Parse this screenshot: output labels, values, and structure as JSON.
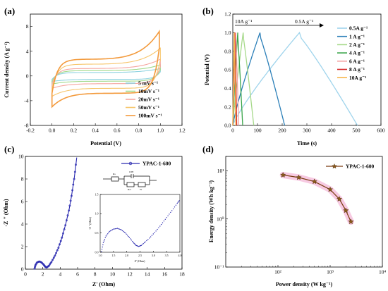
{
  "chart_data": [
    {
      "panel": "(a)",
      "type": "line",
      "title": "",
      "xlabel": "Potential (V)",
      "ylabel": "Current density (A g⁻¹)",
      "xlim": [
        -0.2,
        1.2
      ],
      "ylim": [
        -8,
        10
      ],
      "xticks": [
        "-0.2",
        "0.0",
        "0.2",
        "0.4",
        "0.6",
        "0.8",
        "1.0",
        "1.2"
      ],
      "yticks": [
        "-8",
        "-4",
        "0",
        "4",
        "8"
      ],
      "legend_position": "bottom-right",
      "series": [
        {
          "name": "5 mV s⁻¹",
          "color": "#8fd3e0",
          "vmax": 1.0,
          "ia": 0.55,
          "ic": -0.55,
          "peak": 1.2,
          "neg": -0.9
        },
        {
          "name": "10mV s⁻¹",
          "color": "#a3d98c",
          "vmax": 1.0,
          "ia": 0.85,
          "ic": -0.85,
          "peak": 1.8,
          "neg": -1.3
        },
        {
          "name": "20mV s⁻¹",
          "color": "#f5a6a0",
          "vmax": 1.0,
          "ia": 1.2,
          "ic": -1.25,
          "peak": 2.7,
          "neg": -2.0
        },
        {
          "name": "50mV s⁻¹",
          "color": "#f7c56a",
          "vmax": 1.0,
          "ia": 1.9,
          "ic": -2.0,
          "peak": 4.5,
          "neg": -3.3
        },
        {
          "name": "100mV s⁻¹",
          "color": "#f39a3c",
          "vmax": 0.99,
          "ia": 2.7,
          "ic": -2.8,
          "peak": 7.2,
          "neg": -5.0
        }
      ]
    },
    {
      "panel": "(b)",
      "type": "line",
      "title": "",
      "xlabel": "Time (s)",
      "ylabel": "Potential (V)",
      "xlim": [
        0,
        600
      ],
      "ylim": [
        0,
        1.2
      ],
      "xticks": [
        "0",
        "100",
        "200",
        "300",
        "400",
        "500",
        "600"
      ],
      "yticks": [
        "0.0",
        "0.2",
        "0.4",
        "0.6",
        "0.8",
        "1.0",
        "1.2"
      ],
      "legend_position": "right",
      "annotations": [
        "10A g⁻¹",
        "0.5A g⁻¹"
      ],
      "series": [
        {
          "name": "0.5A g⁻¹",
          "color": "#9fd4ec",
          "t_charge": 270,
          "t_end": 505
        },
        {
          "name": "1  A g⁻¹",
          "color": "#2b7fb8",
          "t_charge": 110,
          "t_end": 210
        },
        {
          "name": "2  A g⁻¹",
          "color": "#a6d98a",
          "t_charge": 42,
          "t_end": 85
        },
        {
          "name": "4  A g⁻¹",
          "color": "#3aa54a",
          "t_charge": 20,
          "t_end": 40
        },
        {
          "name": "6  A g⁻¹",
          "color": "#f4a3a3",
          "t_charge": 12,
          "t_end": 24
        },
        {
          "name": "8  A g⁻¹",
          "color": "#d62728",
          "t_charge": 8,
          "t_end": 16
        },
        {
          "name": "10A g⁻¹",
          "color": "#f7b54a",
          "t_charge": 6,
          "t_end": 12
        }
      ]
    },
    {
      "panel": "(c)",
      "type": "line",
      "title": "",
      "xlabel": "Z' (Ohm)",
      "ylabel": "-Z '' (Ohm)",
      "xlim": [
        0,
        18
      ],
      "ylim": [
        0,
        10
      ],
      "xticks": [
        "0",
        "2",
        "4",
        "6",
        "8",
        "10",
        "12",
        "14",
        "16",
        "18"
      ],
      "yticks": [
        "0",
        "2",
        "4",
        "6",
        "8",
        "10"
      ],
      "legend_position": "top-right",
      "series": [
        {
          "name": "YPAC-1-600",
          "color": "#2b2bb0",
          "points": [
            [
              1.05,
              0.05
            ],
            [
              1.15,
              0.35
            ],
            [
              1.35,
              0.6
            ],
            [
              1.6,
              0.68
            ],
            [
              1.85,
              0.6
            ],
            [
              2.1,
              0.4
            ],
            [
              2.3,
              0.2
            ],
            [
              2.45,
              0.15
            ],
            [
              2.7,
              0.3
            ],
            [
              3.0,
              0.65
            ],
            [
              3.4,
              1.2
            ],
            [
              3.8,
              1.9
            ],
            [
              4.2,
              2.8
            ],
            [
              4.6,
              3.9
            ],
            [
              5.0,
              5.2
            ],
            [
              5.3,
              6.5
            ],
            [
              5.6,
              8.0
            ],
            [
              5.9,
              9.9
            ]
          ]
        }
      ],
      "inset": {
        "xlabel": "Z' (Ohm)",
        "ylabel": "-Z '' (Ohm)",
        "xlim": [
          1.0,
          4.0
        ],
        "ylim": [
          0.0,
          1.5
        ],
        "xticks": [
          "1.0",
          "1.5",
          "2.0",
          "2.5",
          "3.0",
          "3.5",
          "4.0"
        ],
        "yticks": [
          "0.0",
          "0.5",
          "1.0",
          "1.5"
        ],
        "points": [
          [
            1.05,
            0.02
          ],
          [
            1.12,
            0.25
          ],
          [
            1.22,
            0.42
          ],
          [
            1.35,
            0.54
          ],
          [
            1.5,
            0.6
          ],
          [
            1.65,
            0.62
          ],
          [
            1.8,
            0.58
          ],
          [
            1.95,
            0.5
          ],
          [
            2.1,
            0.38
          ],
          [
            2.25,
            0.25
          ],
          [
            2.35,
            0.18
          ],
          [
            2.45,
            0.15
          ],
          [
            2.55,
            0.18
          ],
          [
            2.7,
            0.27
          ],
          [
            2.9,
            0.4
          ],
          [
            3.1,
            0.55
          ],
          [
            3.3,
            0.72
          ],
          [
            3.5,
            0.9
          ],
          [
            3.7,
            1.08
          ],
          [
            3.9,
            1.27
          ],
          [
            4.0,
            1.36
          ]
        ]
      },
      "circuit_labels": [
        "Rs",
        "CPE",
        "Rct",
        "W"
      ]
    },
    {
      "panel": "(d)",
      "type": "line",
      "title": "",
      "xlabel": "Power density (W kg⁻¹)",
      "ylabel": "Energy density (Wh kg⁻¹)",
      "xscale": "log",
      "yscale": "log",
      "xlim": [
        10,
        10000
      ],
      "ylim": [
        0.1,
        20
      ],
      "xticks": [
        "10²",
        "10³",
        "10⁴"
      ],
      "yticks": [
        "10⁻¹",
        "10⁰",
        "10¹"
      ],
      "legend_position": "top-right",
      "series": [
        {
          "name": "YPAC-1-600",
          "color": "#7a3b10",
          "points": [
            [
              125,
              8.2
            ],
            [
              250,
              7.3
            ],
            [
              500,
              6.0
            ],
            [
              1000,
              4.1
            ],
            [
              1500,
              2.6
            ],
            [
              2000,
              1.5
            ],
            [
              2500,
              0.88
            ]
          ]
        }
      ]
    }
  ]
}
